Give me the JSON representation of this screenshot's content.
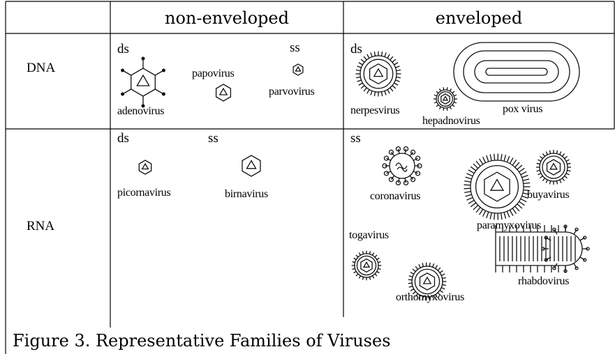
{
  "table": {
    "columns": [
      "non-enveloped",
      "enveloped"
    ],
    "rows": [
      {
        "label": "DNA",
        "cells": [
          {
            "markers": [
              "ds",
              "ss"
            ],
            "viruses": [
              "adenovirus",
              "papovirus",
              "parvovirus"
            ]
          },
          {
            "markers": [
              "ds"
            ],
            "viruses": [
              "nerpesvirus",
              "hepadnovirus",
              "pox virus"
            ]
          }
        ]
      },
      {
        "label": "RNA",
        "cells": [
          {
            "markers": [
              "ds",
              "ss"
            ],
            "viruses": [
              "picornavirus",
              "birnavirus"
            ]
          },
          {
            "markers": [
              "ss"
            ],
            "viruses": [
              "coronavirus",
              "paramyxovirus",
              "buyavirus",
              "togavirus",
              "orthomyxovirus",
              "rhabdovirus"
            ]
          }
        ]
      }
    ]
  },
  "caption": "Figure 3.  Representative Families of Viruses"
}
